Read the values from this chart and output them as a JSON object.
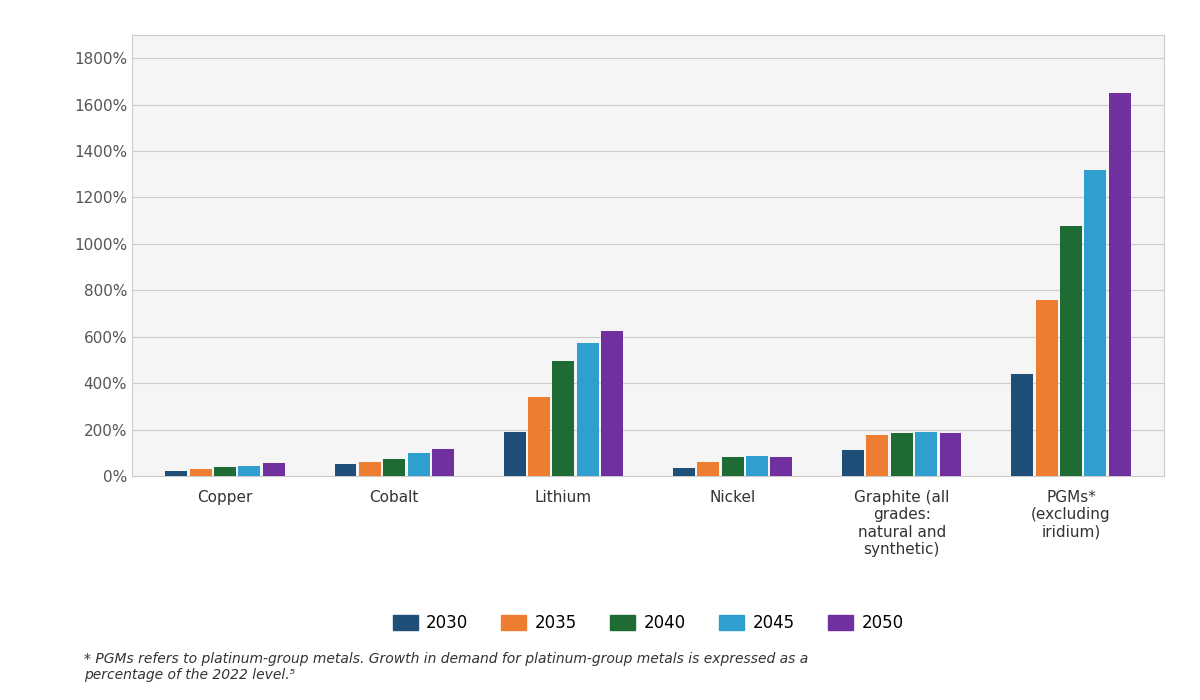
{
  "categories": [
    "Copper",
    "Cobalt",
    "Lithium",
    "Nickel",
    "Graphite (all\ngrades:\nnatural and\nsynthetic)",
    "PGMs*\n(excluding\niridium)"
  ],
  "years": [
    "2030",
    "2035",
    "2040",
    "2045",
    "2050"
  ],
  "colors": [
    "#1f4e79",
    "#ed7d31",
    "#1e6b33",
    "#2e9fce",
    "#7030a0"
  ],
  "values": {
    "2030": [
      20,
      50,
      190,
      35,
      110,
      440
    ],
    "2035": [
      30,
      60,
      340,
      60,
      175,
      760
    ],
    "2040": [
      40,
      75,
      495,
      80,
      185,
      1075
    ],
    "2045": [
      45,
      100,
      575,
      85,
      190,
      1320
    ],
    "2050": [
      55,
      115,
      625,
      80,
      185,
      1650
    ]
  },
  "ylim": [
    0,
    1900
  ],
  "yticks": [
    0,
    200,
    400,
    600,
    800,
    1000,
    1200,
    1400,
    1600,
    1800
  ],
  "ytick_labels": [
    "0%",
    "200%",
    "400%",
    "600%",
    "800%",
    "1000%",
    "1200%",
    "1400%",
    "1600%",
    "1800%"
  ],
  "background_color": "#ffffff",
  "plot_bg_color": "#f5f5f5",
  "grid_color": "#cccccc",
  "footnote_line1": "* PGMs refers to platinum-group metals. Growth in demand for platinum-group metals is expressed as a",
  "footnote_line2": "percentage of the 2022 level.⁵"
}
